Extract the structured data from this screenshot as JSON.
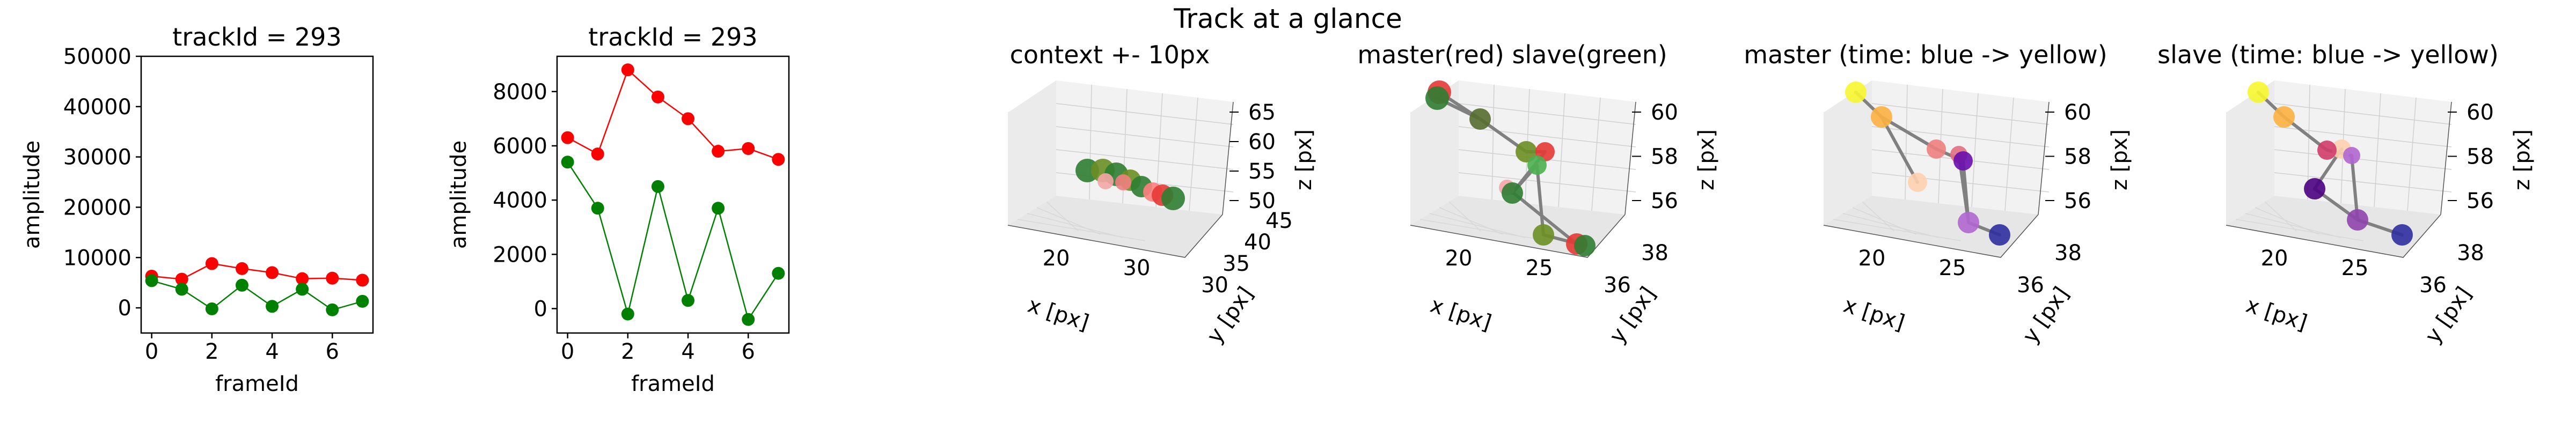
{
  "figure": {
    "suptitle": "Track at a glance"
  },
  "chart_data": [
    {
      "type": "line",
      "title": "trackId = 293",
      "xlabel": "frameId",
      "ylabel": "amplitude",
      "xlim": [
        -0.35,
        7.35
      ],
      "ylim": [
        -5000,
        50000
      ],
      "xticks": [
        0,
        2,
        4,
        6
      ],
      "yticks": [
        0,
        10000,
        20000,
        30000,
        40000,
        50000
      ],
      "series": [
        {
          "color": "#ff0000",
          "x": [
            0,
            1,
            2,
            3,
            4,
            5,
            6,
            7
          ],
          "values": [
            6300,
            5700,
            8800,
            7800,
            7000,
            5800,
            5900,
            5500
          ]
        },
        {
          "color": "#008000",
          "x": [
            0,
            1,
            2,
            3,
            4,
            5,
            6,
            7
          ],
          "values": [
            5400,
            3700,
            -200,
            4500,
            300,
            3700,
            -400,
            1300
          ]
        }
      ]
    },
    {
      "type": "line",
      "title": "trackId = 293",
      "xlabel": "frameId",
      "ylabel": "amplitude",
      "xlim": [
        -0.35,
        7.35
      ],
      "ylim": [
        -900,
        9300
      ],
      "xticks": [
        0,
        2,
        4,
        6
      ],
      "yticks": [
        0,
        2000,
        4000,
        6000,
        8000
      ],
      "series": [
        {
          "color": "#ff0000",
          "x": [
            0,
            1,
            2,
            3,
            4,
            5,
            6,
            7
          ],
          "values": [
            6300,
            5700,
            8800,
            7800,
            7000,
            5800,
            5900,
            5500
          ]
        },
        {
          "color": "#008000",
          "x": [
            0,
            1,
            2,
            3,
            4,
            5,
            6,
            7
          ],
          "values": [
            5400,
            3700,
            -200,
            4500,
            300,
            3700,
            -400,
            1300
          ]
        }
      ]
    },
    {
      "type": "scatter",
      "title": "context +- 10px",
      "xlabel": "x [px]",
      "ylabel": "y [px]",
      "zlabel": "z [px]",
      "xticks": [
        "20",
        "30"
      ],
      "yticks": [
        "30",
        "35",
        "40",
        "45"
      ],
      "zticks": [
        "50",
        "55",
        "60",
        "65"
      ]
    },
    {
      "type": "scatter",
      "title": "master(red) slave(green)",
      "xlabel": "x [px]",
      "ylabel": "y [px]",
      "zlabel": "z [px]",
      "xticks": [
        "20",
        "25"
      ],
      "yticks": [
        "36",
        "38"
      ],
      "zticks": [
        "56",
        "58",
        "60"
      ]
    },
    {
      "type": "scatter",
      "title": "master (time: blue -> yellow)",
      "xlabel": "x [px]",
      "ylabel": "y [px]",
      "zlabel": "z [px]",
      "xticks": [
        "20",
        "25"
      ],
      "yticks": [
        "36",
        "38"
      ],
      "zticks": [
        "56",
        "58",
        "60"
      ]
    },
    {
      "type": "scatter",
      "title": "slave (time: blue -> yellow)",
      "xlabel": "x [px]",
      "ylabel": "y [px]",
      "zlabel": "z [px]",
      "xticks": [
        "20",
        "25"
      ],
      "yticks": [
        "36",
        "38"
      ],
      "zticks": [
        "56",
        "58",
        "60"
      ]
    }
  ]
}
